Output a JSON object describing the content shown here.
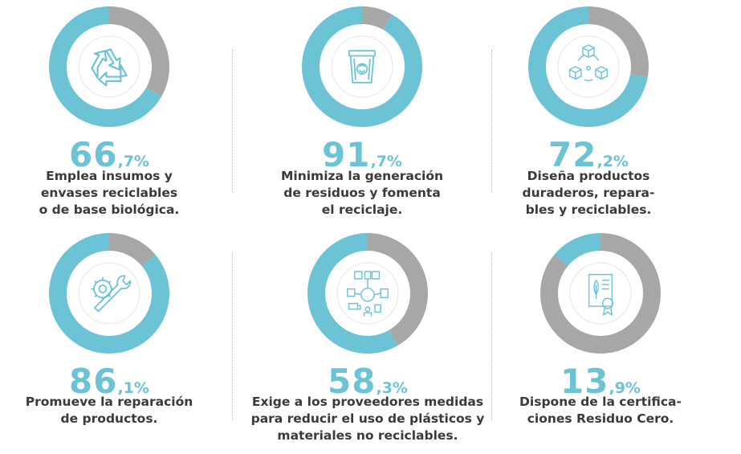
{
  "colors": {
    "primary": "#6dc3d6",
    "secondary": "#a7a7a7",
    "text": "#3a3a3a"
  },
  "chart_data": [
    {
      "type": "pie",
      "value": 66.7,
      "pct_int": "66",
      "pct_dec": ",7%",
      "icon": "recycle-icon",
      "description": "Emplea insumos y\nenvases reciclables\no de base biológica."
    },
    {
      "type": "pie",
      "value": 91.7,
      "pct_int": "91",
      "pct_dec": ",7%",
      "icon": "recycling-bin-icon",
      "description": "Minimiza la generación\nde residuos y fomenta\nel reciclaje."
    },
    {
      "type": "pie",
      "value": 72.2,
      "pct_int": "72",
      "pct_dec": ",2%",
      "icon": "cubes-cycle-icon",
      "description": "Diseña productos\nduraderos, repara-\nbles y reciclables."
    },
    {
      "type": "pie",
      "value": 86.1,
      "pct_int": "86",
      "pct_dec": ",1%",
      "icon": "gear-wrench-icon",
      "description": "Promueve la reparación\nde productos."
    },
    {
      "type": "pie",
      "value": 58.3,
      "pct_int": "58",
      "pct_dec": ",3%",
      "icon": "supply-chain-icon",
      "description": "Exige a los proveedores medidas\npara reducir el uso de plásticos y\nmateriales no reciclables."
    },
    {
      "type": "pie",
      "value": 13.9,
      "pct_int": "13",
      "pct_dec": ",9%",
      "icon": "certificate-icon",
      "description": "Dispone de la certifica-\nciones Residuo Cero."
    }
  ]
}
